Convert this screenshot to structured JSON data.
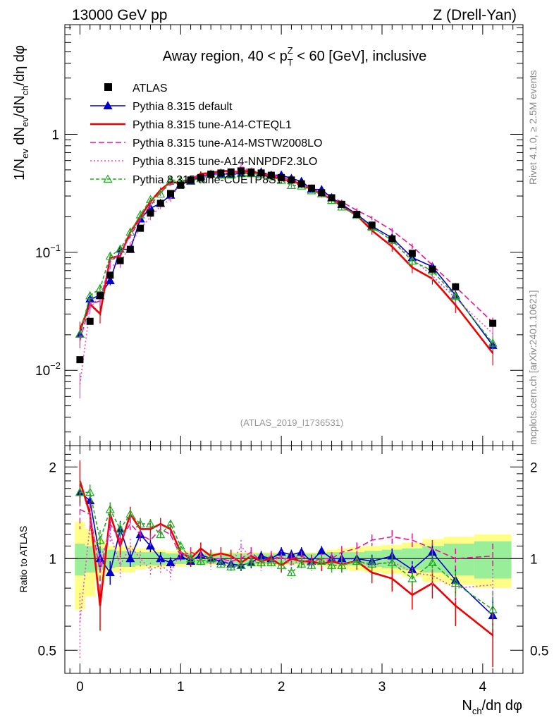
{
  "header": {
    "energy_label": "13000 GeV pp",
    "process_label": "Z (Drell-Yan)"
  },
  "side_labels": {
    "rivet": "Rivet 4.1.0, ≥ 2.5M events",
    "mcplots": "mcplots.cern.ch [arXiv:2401.10621]"
  },
  "analysis_id": "(ATLAS_2019_I1736531)",
  "colors": {
    "data": "#000000",
    "default": "#0000cc",
    "cteql1": "#ee0000",
    "mstw": "#ee1493",
    "nnpdf": "#ee44cc",
    "mstw_alt": "#ff00ff",
    "cuetp": "#22aa22",
    "band_green": "#99ee99",
    "band_yellow": "#ffff88"
  },
  "legend": [
    {
      "key": "data",
      "label": "ATLAS"
    },
    {
      "key": "default",
      "label": "Pythia 8.315 default"
    },
    {
      "key": "cteql1",
      "label": "Pythia 8.315 tune-A14-CTEQL1"
    },
    {
      "key": "mstw",
      "label": "Pythia 8.315 tune-A14-MSTW2008LO"
    },
    {
      "key": "nnpdf",
      "label": "Pythia 8.315 tune-A14-NNPDF2.3LO"
    },
    {
      "key": "cuetp",
      "label": "Pythia 8.315 tune-CUETP8S1"
    }
  ],
  "chart_data": {
    "type": "line",
    "title_parts": {
      "pre": "Away region, 40 < p",
      "sup": "Z",
      "sub": "T",
      "post": " < 60 [GeV], inclusive"
    },
    "ylabel_main": "1/N_ev dN_ev/dN_ch/dη dφ",
    "ylabel_ratio": "Ratio to ATLAS",
    "xlabel": "N_ch/dη dφ",
    "xlim": [
      -0.15,
      4.4
    ],
    "ylim_main": [
      0.0023,
      8.5
    ],
    "ylim_ratio": [
      0.42,
      2.35
    ],
    "y_log": true,
    "x_ticks": [
      0,
      1,
      2,
      3,
      4
    ],
    "y_main_ticks": [
      {
        "v": 0.01,
        "mant": "10",
        "exp": "−2"
      },
      {
        "v": 0.1,
        "mant": "10",
        "exp": "−1"
      },
      {
        "v": 1,
        "mant": "1",
        "exp": ""
      }
    ],
    "y_ratio_ticks": [
      0.5,
      1,
      2
    ],
    "x": [
      0,
      0.1,
      0.2,
      0.3,
      0.4,
      0.5,
      0.6,
      0.7,
      0.8,
      0.9,
      1.0,
      1.1,
      1.2,
      1.3,
      1.4,
      1.5,
      1.6,
      1.7,
      1.8,
      1.9,
      2.0,
      2.1,
      2.2,
      2.3,
      2.4,
      2.5,
      2.6,
      2.75,
      2.9,
      3.1,
      3.3,
      3.5,
      3.73,
      4.1
    ],
    "data_y": [
      0.0123,
      0.026,
      0.043,
      0.064,
      0.085,
      0.106,
      0.16,
      0.215,
      0.26,
      0.315,
      0.37,
      0.41,
      0.43,
      0.46,
      0.47,
      0.48,
      0.49,
      0.48,
      0.47,
      0.45,
      0.43,
      0.41,
      0.38,
      0.35,
      0.32,
      0.29,
      0.255,
      0.21,
      0.17,
      0.13,
      0.098,
      0.072,
      0.051,
      0.025
    ],
    "band_green": [
      0.12,
      0.1,
      0.08,
      0.07,
      0.06,
      0.06,
      0.05,
      0.05,
      0.05,
      0.04,
      0.04,
      0.04,
      0.04,
      0.04,
      0.04,
      0.04,
      0.04,
      0.04,
      0.04,
      0.04,
      0.04,
      0.04,
      0.04,
      0.04,
      0.04,
      0.05,
      0.05,
      0.05,
      0.06,
      0.07,
      0.08,
      0.1,
      0.12,
      0.14
    ],
    "band_yellow": [
      0.32,
      0.25,
      0.15,
      0.1,
      0.1,
      0.1,
      0.08,
      0.07,
      0.07,
      0.06,
      0.06,
      0.06,
      0.05,
      0.05,
      0.05,
      0.05,
      0.05,
      0.05,
      0.05,
      0.05,
      0.05,
      0.05,
      0.05,
      0.05,
      0.06,
      0.07,
      0.08,
      0.09,
      0.1,
      0.11,
      0.13,
      0.16,
      0.18,
      0.2
    ],
    "series": [
      {
        "key": "default",
        "name": "Pythia 8.315 default",
        "marker": "triangle",
        "dash": "",
        "ratio": [
          1.65,
          1.55,
          1.0,
          0.9,
          1.25,
          1.0,
          1.2,
          1.1,
          1.0,
          0.97,
          1.02,
          0.98,
          1.03,
          1.0,
          0.98,
          0.96,
          0.95,
          0.97,
          1.02,
          1.0,
          1.05,
          1.03,
          1.05,
          0.98,
          1.06,
          1.0,
          1.0,
          1.0,
          0.98,
          1.02,
          0.92,
          1.05,
          0.85,
          0.65
        ],
        "ratio_err": [
          0.12,
          0.1,
          0.1,
          0.08,
          0.08,
          0.06,
          0.06,
          0.05,
          0.05,
          0.04,
          0.04,
          0.04,
          0.04,
          0.04,
          0.04,
          0.04,
          0.04,
          0.04,
          0.04,
          0.04,
          0.04,
          0.04,
          0.04,
          0.04,
          0.04,
          0.05,
          0.05,
          0.05,
          0.05,
          0.06,
          0.06,
          0.07,
          0.08,
          0.1
        ]
      },
      {
        "key": "cteql1",
        "name": "Pythia 8.315 tune-A14-CTEQL1",
        "marker": "none",
        "dash": "",
        "ratio": [
          1.8,
          1.4,
          0.7,
          1.4,
          1.1,
          1.4,
          1.25,
          1.25,
          1.3,
          1.25,
          1.05,
          1.0,
          1.08,
          1.02,
          1.04,
          1.02,
          0.97,
          1.02,
          0.98,
          1.0,
          0.95,
          1.0,
          0.98,
          0.98,
          0.96,
          0.98,
          0.96,
          0.98,
          0.9,
          0.86,
          0.76,
          0.83,
          0.7,
          0.56
        ],
        "ratio_err": [
          0.3,
          0.15,
          0.12,
          0.1,
          0.09,
          0.08,
          0.07,
          0.06,
          0.06,
          0.05,
          0.05,
          0.05,
          0.05,
          0.05,
          0.05,
          0.05,
          0.05,
          0.05,
          0.05,
          0.05,
          0.05,
          0.05,
          0.05,
          0.05,
          0.05,
          0.06,
          0.06,
          0.06,
          0.07,
          0.08,
          0.08,
          0.09,
          0.1,
          0.12
        ]
      },
      {
        "key": "mstw",
        "name": "Pythia 8.315 tune-A14-MSTW2008LO",
        "marker": "none",
        "dash": "8,4",
        "ratio": [
          1.45,
          1.4,
          0.9,
          1.3,
          1.15,
          1.3,
          1.2,
          1.15,
          1.25,
          1.2,
          1.02,
          1.05,
          1.02,
          1.0,
          1.0,
          0.98,
          1.0,
          1.05,
          0.98,
          1.02,
          1.0,
          1.0,
          1.02,
          0.98,
          1.0,
          1.0,
          1.05,
          1.08,
          1.15,
          1.18,
          1.15,
          1.08,
          1.0,
          1.02
        ],
        "ratio_err": [
          0.2,
          0.12,
          0.1,
          0.08,
          0.07,
          0.06,
          0.05,
          0.05,
          0.05,
          0.04,
          0.04,
          0.04,
          0.04,
          0.04,
          0.04,
          0.04,
          0.04,
          0.04,
          0.04,
          0.04,
          0.04,
          0.04,
          0.04,
          0.04,
          0.04,
          0.05,
          0.05,
          0.05,
          0.05,
          0.06,
          0.06,
          0.07,
          0.08,
          0.1
        ]
      },
      {
        "key": "nnpdf",
        "name": "Pythia 8.315 tune-A14-NNPDF2.3LO",
        "marker": "none",
        "dash": "2,3",
        "ratio": [
          0.62,
          1.3,
          1.0,
          1.2,
          0.95,
          1.1,
          1.0,
          0.92,
          0.95,
          0.9,
          1.05,
          1.0,
          1.0,
          0.96,
          1.0,
          0.95,
          1.1,
          1.0,
          0.95,
          0.97,
          1.02,
          0.95,
          1.0,
          0.95,
          0.97,
          1.0,
          0.96,
          0.98,
          0.95,
          0.98,
          0.9,
          0.88,
          0.8,
          0.82
        ],
        "ratio_err": [
          0.15,
          0.12,
          0.1,
          0.08,
          0.08,
          0.06,
          0.06,
          0.05,
          0.06,
          0.05,
          0.04,
          0.04,
          0.04,
          0.04,
          0.04,
          0.04,
          0.05,
          0.04,
          0.04,
          0.04,
          0.04,
          0.04,
          0.04,
          0.04,
          0.04,
          0.05,
          0.05,
          0.05,
          0.05,
          0.06,
          0.06,
          0.07,
          0.08,
          0.1
        ]
      },
      {
        "key": "cuetp",
        "name": "Pythia 8.315 tune-CUETP8S1",
        "marker": "triangle-open",
        "dash": "5,3",
        "ratio": [
          1.65,
          1.65,
          1.15,
          1.45,
          1.25,
          1.4,
          1.3,
          1.3,
          1.2,
          1.3,
          1.1,
          1.0,
          0.98,
          1.0,
          0.96,
          0.94,
          0.95,
          0.97,
          0.97,
          0.97,
          0.95,
          0.9,
          0.96,
          0.95,
          0.98,
          0.95,
          0.95,
          0.98,
          0.96,
          0.97,
          0.86,
          0.97,
          0.83,
          0.68
        ],
        "ratio_err": [
          0.15,
          0.1,
          0.09,
          0.08,
          0.07,
          0.06,
          0.06,
          0.05,
          0.05,
          0.04,
          0.04,
          0.04,
          0.04,
          0.04,
          0.04,
          0.04,
          0.04,
          0.04,
          0.04,
          0.04,
          0.04,
          0.04,
          0.04,
          0.04,
          0.04,
          0.05,
          0.05,
          0.05,
          0.05,
          0.06,
          0.06,
          0.07,
          0.08,
          0.1
        ]
      }
    ]
  }
}
